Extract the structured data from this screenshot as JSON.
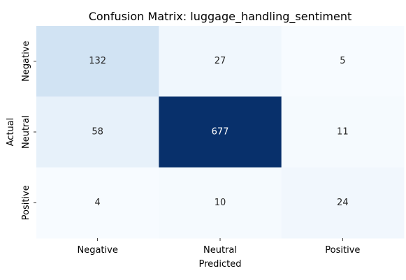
{
  "chart_data": {
    "type": "heatmap",
    "title": "Confusion Matrix: luggage_handling_sentiment",
    "xlabel": "Predicted",
    "ylabel": "Actual",
    "x_categories": [
      "Negative",
      "Neutral",
      "Positive"
    ],
    "y_categories": [
      "Negative",
      "Neutral",
      "Positive"
    ],
    "values": [
      [
        132,
        27,
        5
      ],
      [
        58,
        677,
        11
      ],
      [
        4,
        10,
        24
      ]
    ],
    "colormap": "Blues",
    "value_range": [
      4,
      677
    ],
    "colorbar": false,
    "annotated": true
  },
  "colors": {
    "low": "#f7fbff",
    "high": "#08306b",
    "text_dark": "#262626",
    "text_light": "#ffffff"
  }
}
